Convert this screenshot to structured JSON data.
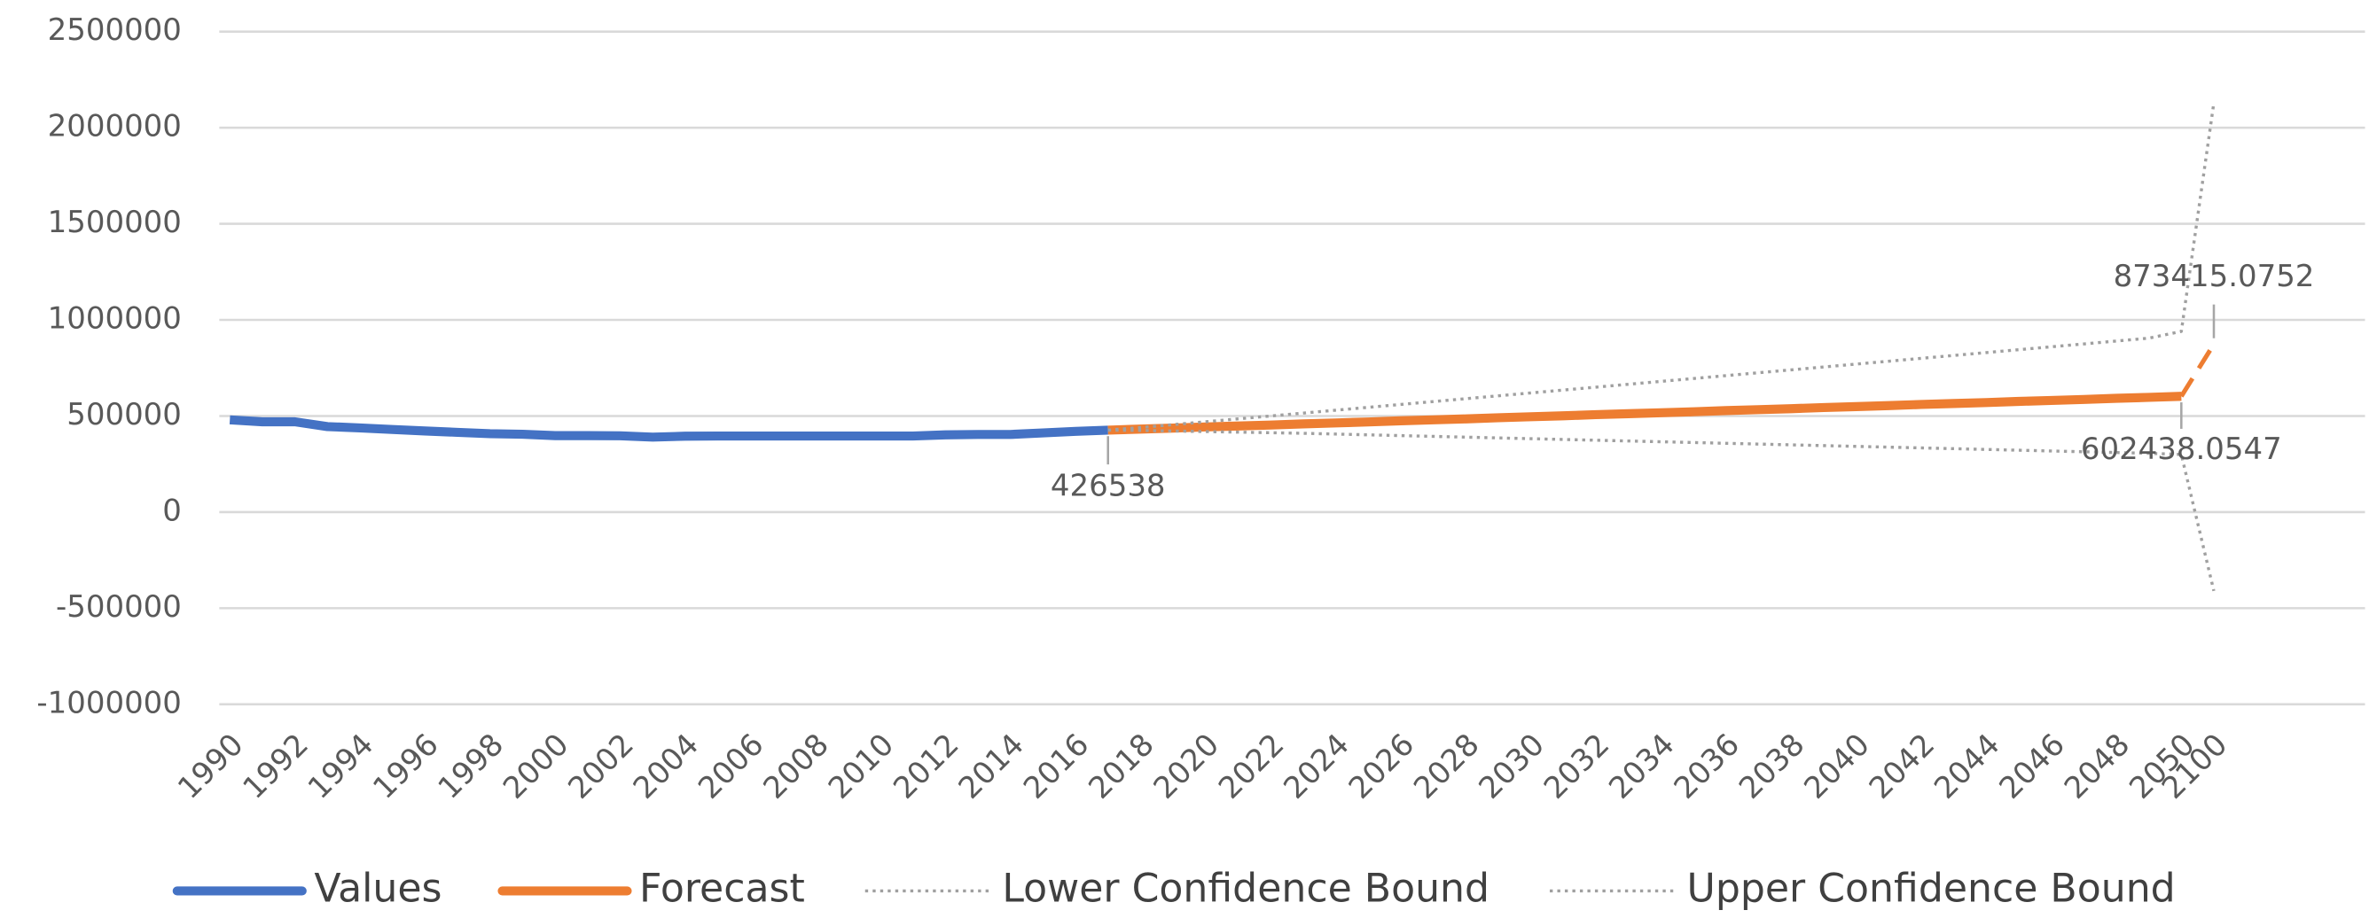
{
  "chart_data": {
    "type": "line",
    "categories": [
      "1990",
      null,
      "1992",
      null,
      "1994",
      null,
      "1996",
      null,
      "1998",
      null,
      "2000",
      null,
      "2002",
      null,
      "2004",
      null,
      "2006",
      null,
      "2008",
      null,
      "2010",
      null,
      "2012",
      null,
      "2014",
      null,
      "2016",
      null,
      "2018",
      null,
      "2020",
      null,
      "2022",
      null,
      "2024",
      null,
      "2026",
      null,
      "2028",
      null,
      "2030",
      null,
      "2032",
      null,
      "2034",
      null,
      "2036",
      null,
      "2038",
      null,
      "2040",
      null,
      "2042",
      null,
      "2044",
      null,
      "2046",
      null,
      "2048",
      null,
      "2050",
      "2100"
    ],
    "series": [
      {
        "name": "Values",
        "color": "#4472c4",
        "style": "solid",
        "values": [
          480000,
          470000,
          470000,
          445000,
          438000,
          430000,
          422000,
          415000,
          408000,
          405000,
          398000,
          398000,
          397000,
          390000,
          395000,
          396000,
          396000,
          396000,
          396000,
          396000,
          396000,
          396000,
          402000,
          404000,
          404000,
          412000,
          420000,
          426538,
          null,
          null,
          null,
          null,
          null,
          null,
          null,
          null,
          null,
          null,
          null,
          null,
          null,
          null,
          null,
          null,
          null,
          null,
          null,
          null,
          null,
          null,
          null,
          null,
          null,
          null,
          null,
          null,
          null,
          null,
          null,
          null,
          null,
          null
        ]
      },
      {
        "name": "Forecast",
        "color": "#ed7d31",
        "style": "solid",
        "values": [
          null,
          null,
          null,
          null,
          null,
          null,
          null,
          null,
          null,
          null,
          null,
          null,
          null,
          null,
          null,
          null,
          null,
          null,
          null,
          null,
          null,
          null,
          null,
          null,
          null,
          null,
          null,
          426538,
          432000,
          437000,
          443000,
          448000,
          453000,
          459000,
          464000,
          469000,
          475000,
          480000,
          485000,
          491000,
          496000,
          501000,
          507000,
          512000,
          517000,
          522000,
          528000,
          533000,
          538000,
          544000,
          549000,
          554000,
          560000,
          565000,
          570000,
          576000,
          581000,
          586000,
          592000,
          597000,
          602438.0547,
          873415.0752
        ]
      },
      {
        "name": "Lower Confidence Bound",
        "color": "#a0a0a0",
        "style": "dotted",
        "values": [
          null,
          null,
          null,
          null,
          null,
          null,
          null,
          null,
          null,
          null,
          null,
          null,
          null,
          null,
          null,
          null,
          null,
          null,
          null,
          null,
          null,
          null,
          null,
          null,
          null,
          null,
          null,
          426538,
          425000,
          422000,
          419000,
          416000,
          413000,
          410000,
          406000,
          402000,
          398000,
          394000,
          390000,
          386000,
          382000,
          378000,
          374000,
          370000,
          366000,
          362000,
          358000,
          354000,
          350000,
          346000,
          342000,
          338000,
          334000,
          330000,
          326000,
          322000,
          318000,
          314000,
          310000,
          306000,
          300000,
          -410000
        ]
      },
      {
        "name": "Upper Confidence Bound",
        "color": "#a0a0a0",
        "style": "dotted",
        "values": [
          null,
          null,
          null,
          null,
          null,
          null,
          null,
          null,
          null,
          null,
          null,
          null,
          null,
          null,
          null,
          null,
          null,
          null,
          null,
          null,
          null,
          null,
          null,
          null,
          null,
          null,
          null,
          426538,
          440000,
          455000,
          470000,
          485000,
          500000,
          515000,
          530000,
          545000,
          560000,
          575000,
          590000,
          605000,
          620000,
          635000,
          650000,
          665000,
          680000,
          695000,
          710000,
          725000,
          740000,
          755000,
          770000,
          785000,
          800000,
          815000,
          830000,
          845000,
          860000,
          875000,
          890000,
          905000,
          940000,
          2130000
        ]
      }
    ],
    "ylim": [
      -1000000,
      2500000
    ],
    "yticks": [
      -1000000,
      -500000,
      0,
      500000,
      1000000,
      1500000,
      2000000,
      2500000
    ],
    "grid": true,
    "legend": "bottom"
  }
}
